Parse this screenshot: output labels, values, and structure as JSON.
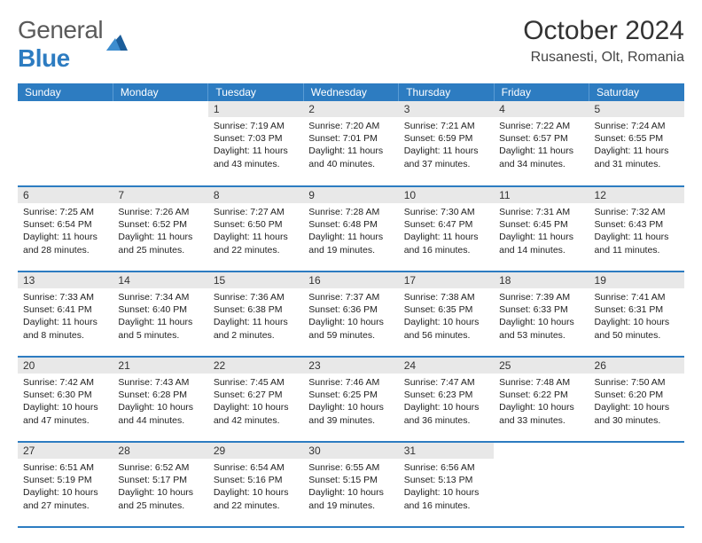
{
  "logo": {
    "text1": "General",
    "text2": "Blue"
  },
  "title": "October 2024",
  "location": "Rusanesti, Olt, Romania",
  "colors": {
    "header_bg": "#2d7cc1",
    "header_text": "#ffffff",
    "day_num_bg": "#e8e8e8",
    "cell_border": "#2d7cc1",
    "logo_gray": "#5a5a5a",
    "logo_blue": "#2d7cc1"
  },
  "day_labels": [
    "Sunday",
    "Monday",
    "Tuesday",
    "Wednesday",
    "Thursday",
    "Friday",
    "Saturday"
  ],
  "leading_blanks": 2,
  "days": [
    {
      "n": 1,
      "sr": "7:19 AM",
      "ss": "7:03 PM",
      "dl": "11 hours and 43 minutes."
    },
    {
      "n": 2,
      "sr": "7:20 AM",
      "ss": "7:01 PM",
      "dl": "11 hours and 40 minutes."
    },
    {
      "n": 3,
      "sr": "7:21 AM",
      "ss": "6:59 PM",
      "dl": "11 hours and 37 minutes."
    },
    {
      "n": 4,
      "sr": "7:22 AM",
      "ss": "6:57 PM",
      "dl": "11 hours and 34 minutes."
    },
    {
      "n": 5,
      "sr": "7:24 AM",
      "ss": "6:55 PM",
      "dl": "11 hours and 31 minutes."
    },
    {
      "n": 6,
      "sr": "7:25 AM",
      "ss": "6:54 PM",
      "dl": "11 hours and 28 minutes."
    },
    {
      "n": 7,
      "sr": "7:26 AM",
      "ss": "6:52 PM",
      "dl": "11 hours and 25 minutes."
    },
    {
      "n": 8,
      "sr": "7:27 AM",
      "ss": "6:50 PM",
      "dl": "11 hours and 22 minutes."
    },
    {
      "n": 9,
      "sr": "7:28 AM",
      "ss": "6:48 PM",
      "dl": "11 hours and 19 minutes."
    },
    {
      "n": 10,
      "sr": "7:30 AM",
      "ss": "6:47 PM",
      "dl": "11 hours and 16 minutes."
    },
    {
      "n": 11,
      "sr": "7:31 AM",
      "ss": "6:45 PM",
      "dl": "11 hours and 14 minutes."
    },
    {
      "n": 12,
      "sr": "7:32 AM",
      "ss": "6:43 PM",
      "dl": "11 hours and 11 minutes."
    },
    {
      "n": 13,
      "sr": "7:33 AM",
      "ss": "6:41 PM",
      "dl": "11 hours and 8 minutes."
    },
    {
      "n": 14,
      "sr": "7:34 AM",
      "ss": "6:40 PM",
      "dl": "11 hours and 5 minutes."
    },
    {
      "n": 15,
      "sr": "7:36 AM",
      "ss": "6:38 PM",
      "dl": "11 hours and 2 minutes."
    },
    {
      "n": 16,
      "sr": "7:37 AM",
      "ss": "6:36 PM",
      "dl": "10 hours and 59 minutes."
    },
    {
      "n": 17,
      "sr": "7:38 AM",
      "ss": "6:35 PM",
      "dl": "10 hours and 56 minutes."
    },
    {
      "n": 18,
      "sr": "7:39 AM",
      "ss": "6:33 PM",
      "dl": "10 hours and 53 minutes."
    },
    {
      "n": 19,
      "sr": "7:41 AM",
      "ss": "6:31 PM",
      "dl": "10 hours and 50 minutes."
    },
    {
      "n": 20,
      "sr": "7:42 AM",
      "ss": "6:30 PM",
      "dl": "10 hours and 47 minutes."
    },
    {
      "n": 21,
      "sr": "7:43 AM",
      "ss": "6:28 PM",
      "dl": "10 hours and 44 minutes."
    },
    {
      "n": 22,
      "sr": "7:45 AM",
      "ss": "6:27 PM",
      "dl": "10 hours and 42 minutes."
    },
    {
      "n": 23,
      "sr": "7:46 AM",
      "ss": "6:25 PM",
      "dl": "10 hours and 39 minutes."
    },
    {
      "n": 24,
      "sr": "7:47 AM",
      "ss": "6:23 PM",
      "dl": "10 hours and 36 minutes."
    },
    {
      "n": 25,
      "sr": "7:48 AM",
      "ss": "6:22 PM",
      "dl": "10 hours and 33 minutes."
    },
    {
      "n": 26,
      "sr": "7:50 AM",
      "ss": "6:20 PM",
      "dl": "10 hours and 30 minutes."
    },
    {
      "n": 27,
      "sr": "6:51 AM",
      "ss": "5:19 PM",
      "dl": "10 hours and 27 minutes."
    },
    {
      "n": 28,
      "sr": "6:52 AM",
      "ss": "5:17 PM",
      "dl": "10 hours and 25 minutes."
    },
    {
      "n": 29,
      "sr": "6:54 AM",
      "ss": "5:16 PM",
      "dl": "10 hours and 22 minutes."
    },
    {
      "n": 30,
      "sr": "6:55 AM",
      "ss": "5:15 PM",
      "dl": "10 hours and 19 minutes."
    },
    {
      "n": 31,
      "sr": "6:56 AM",
      "ss": "5:13 PM",
      "dl": "10 hours and 16 minutes."
    }
  ],
  "labels": {
    "sunrise": "Sunrise:",
    "sunset": "Sunset:",
    "daylight": "Daylight:"
  }
}
